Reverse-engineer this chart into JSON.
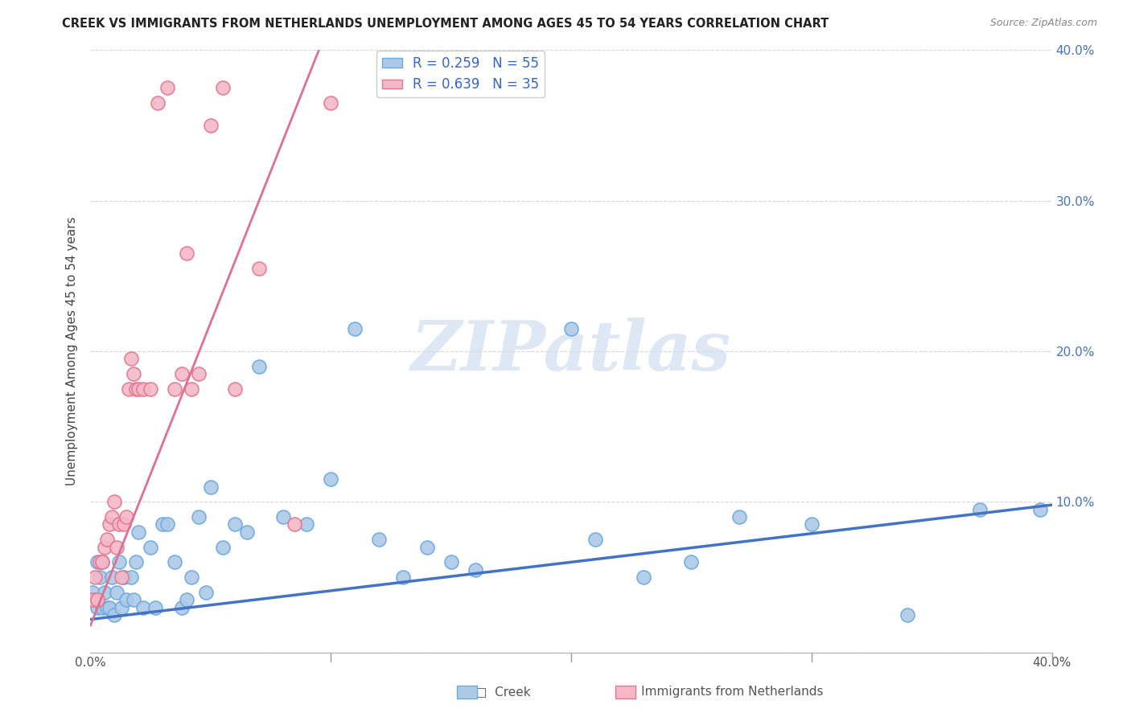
{
  "title": "CREEK VS IMMIGRANTS FROM NETHERLANDS UNEMPLOYMENT AMONG AGES 45 TO 54 YEARS CORRELATION CHART",
  "source": "Source: ZipAtlas.com",
  "ylabel": "Unemployment Among Ages 45 to 54 years",
  "xlim": [
    0.0,
    0.4
  ],
  "ylim": [
    0.0,
    0.4
  ],
  "creek_color": "#adc9e8",
  "creek_edge_color": "#6aaae0",
  "netherlands_color": "#f4b8c8",
  "netherlands_edge_color": "#e8758f",
  "creek_R": 0.259,
  "creek_N": 55,
  "netherlands_R": 0.639,
  "netherlands_N": 35,
  "creek_line_color": "#4472c4",
  "netherlands_line_color": "#e07090",
  "watermark": "ZIPatlas",
  "background_color": "#ffffff",
  "creek_line_x0": 0.0,
  "creek_line_y0": 0.022,
  "creek_line_x1": 0.4,
  "creek_line_y1": 0.098,
  "neth_line_x0": 0.0,
  "neth_line_y0": 0.018,
  "neth_line_x1": 0.095,
  "neth_line_y1": 0.4,
  "creek_scatter_x": [
    0.001,
    0.002,
    0.003,
    0.003,
    0.004,
    0.005,
    0.005,
    0.006,
    0.007,
    0.008,
    0.009,
    0.01,
    0.011,
    0.012,
    0.013,
    0.014,
    0.015,
    0.017,
    0.018,
    0.019,
    0.02,
    0.022,
    0.025,
    0.027,
    0.03,
    0.032,
    0.035,
    0.038,
    0.04,
    0.042,
    0.045,
    0.048,
    0.05,
    0.055,
    0.06,
    0.065,
    0.07,
    0.08,
    0.09,
    0.1,
    0.11,
    0.12,
    0.13,
    0.14,
    0.15,
    0.16,
    0.2,
    0.21,
    0.23,
    0.25,
    0.27,
    0.3,
    0.34,
    0.37,
    0.395
  ],
  "creek_scatter_y": [
    0.04,
    0.035,
    0.03,
    0.06,
    0.05,
    0.03,
    0.06,
    0.04,
    0.03,
    0.03,
    0.05,
    0.025,
    0.04,
    0.06,
    0.03,
    0.05,
    0.035,
    0.05,
    0.035,
    0.06,
    0.08,
    0.03,
    0.07,
    0.03,
    0.085,
    0.085,
    0.06,
    0.03,
    0.035,
    0.05,
    0.09,
    0.04,
    0.11,
    0.07,
    0.085,
    0.08,
    0.19,
    0.09,
    0.085,
    0.115,
    0.215,
    0.075,
    0.05,
    0.07,
    0.06,
    0.055,
    0.215,
    0.075,
    0.05,
    0.06,
    0.09,
    0.085,
    0.025,
    0.095,
    0.095
  ],
  "neth_scatter_x": [
    0.001,
    0.002,
    0.003,
    0.004,
    0.005,
    0.006,
    0.007,
    0.008,
    0.009,
    0.01,
    0.011,
    0.012,
    0.013,
    0.014,
    0.015,
    0.016,
    0.017,
    0.018,
    0.019,
    0.02,
    0.022,
    0.025,
    0.028,
    0.032,
    0.035,
    0.038,
    0.04,
    0.042,
    0.045,
    0.05,
    0.055,
    0.06,
    0.07,
    0.085,
    0.1
  ],
  "neth_scatter_y": [
    0.035,
    0.05,
    0.035,
    0.06,
    0.06,
    0.07,
    0.075,
    0.085,
    0.09,
    0.1,
    0.07,
    0.085,
    0.05,
    0.085,
    0.09,
    0.175,
    0.195,
    0.185,
    0.175,
    0.175,
    0.175,
    0.175,
    0.365,
    0.375,
    0.175,
    0.185,
    0.265,
    0.175,
    0.185,
    0.35,
    0.375,
    0.175,
    0.255,
    0.085,
    0.365
  ]
}
